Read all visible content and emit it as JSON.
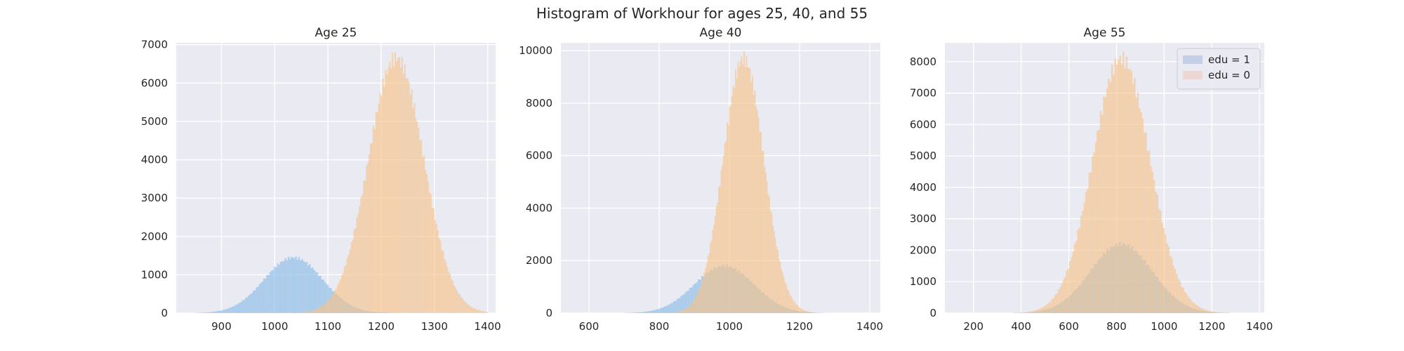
{
  "figure": {
    "title": "Histogram of Workhour for ages 25, 40, and 55"
  },
  "colors": {
    "background": "#eaeaf2",
    "grid": "#ffffff",
    "edu1": "#8bbde6",
    "edu0": "#f5c48c",
    "legend_edu1": "#c4cfe6",
    "legend_edu0": "#ecd7d3"
  },
  "chart_data": [
    {
      "type": "histogram",
      "title": "Age 25",
      "xlim": [
        815,
        1415
      ],
      "ylim": [
        0,
        7050
      ],
      "xticks": [
        900,
        1000,
        1100,
        1200,
        1300,
        1400
      ],
      "yticks": [
        0,
        1000,
        2000,
        3000,
        4000,
        5000,
        6000,
        7000
      ],
      "grid": true,
      "legend": null,
      "series": [
        {
          "name": "edu = 1",
          "mean": 1035,
          "sd": 55,
          "peak": 1450,
          "range": [
            850,
            1250
          ],
          "color_key": "edu1"
        },
        {
          "name": "edu = 0",
          "mean": 1228,
          "sd": 52,
          "peak": 6650,
          "range": [
            1040,
            1400
          ],
          "color_key": "edu0"
        }
      ]
    },
    {
      "type": "histogram",
      "title": "Age 40",
      "xlim": [
        520,
        1430
      ],
      "ylim": [
        0,
        10300
      ],
      "xticks": [
        600,
        800,
        1000,
        1200,
        1400
      ],
      "yticks": [
        0,
        2000,
        4000,
        6000,
        8000,
        10000
      ],
      "grid": true,
      "legend": null,
      "series": [
        {
          "name": "edu = 1",
          "mean": 985,
          "sd": 85,
          "peak": 1800,
          "range": [
            650,
            1350
          ],
          "color_key": "edu1"
        },
        {
          "name": "edu = 0",
          "mean": 1040,
          "sd": 58,
          "peak": 9700,
          "range": [
            800,
            1280
          ],
          "color_key": "edu0"
        }
      ]
    },
    {
      "type": "histogram",
      "title": "Age 55",
      "xlim": [
        80,
        1420
      ],
      "ylim": [
        0,
        8600
      ],
      "xticks": [
        200,
        400,
        600,
        800,
        1000,
        1200,
        1400
      ],
      "yticks": [
        0,
        1000,
        2000,
        3000,
        4000,
        5000,
        6000,
        7000,
        8000
      ],
      "grid": true,
      "legend": "top-right",
      "legend_entries": [
        "edu = 1",
        "edu = 0"
      ],
      "series": [
        {
          "name": "edu = 1",
          "mean": 820,
          "sd": 130,
          "peak": 2200,
          "range": [
            300,
            1350
          ],
          "color_key": "edu1"
        },
        {
          "name": "edu = 0",
          "mean": 820,
          "sd": 120,
          "peak": 8100,
          "range": [
            350,
            1300
          ],
          "color_key": "edu0"
        }
      ]
    }
  ]
}
